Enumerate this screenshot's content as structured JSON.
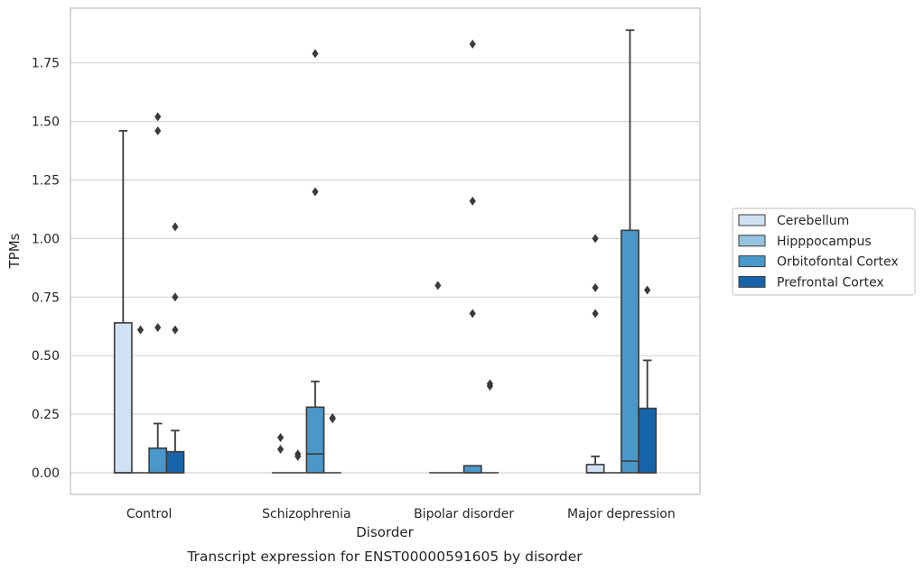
{
  "chart_data": {
    "type": "box",
    "xlabel": "Disorder",
    "ylabel": "TPMs",
    "caption": "Transcript expression for ENST00000591605 by disorder",
    "ylim": [
      -0.09,
      1.98
    ],
    "yticks": [
      "0.00",
      "0.25",
      "0.50",
      "0.75",
      "1.00",
      "1.25",
      "1.50",
      "1.75"
    ],
    "ytick_values": [
      0,
      0.25,
      0.5,
      0.75,
      1.0,
      1.25,
      1.5,
      1.75
    ],
    "grid": "horizontal",
    "legend_position": "right",
    "categories": [
      "Control",
      "Schizophrenia",
      "Bipolar disorder",
      "Major depression"
    ],
    "series": [
      {
        "name": "Cerebellum",
        "color": "#d0e1f2",
        "boxes": [
          {
            "q1": 0,
            "median": 0,
            "q3": 0.64,
            "whisker_low": 0,
            "whisker_high": 1.46,
            "outliers": []
          },
          {
            "q1": 0,
            "median": 0,
            "q3": 0,
            "whisker_low": 0,
            "whisker_high": 0,
            "outliers": [
              0.1,
              0.15
            ]
          },
          {
            "q1": 0,
            "median": 0,
            "q3": 0,
            "whisker_low": 0,
            "whisker_high": 0,
            "outliers": [
              0.8
            ]
          },
          {
            "q1": 0,
            "median": 0,
            "q3": 0.035,
            "whisker_low": 0,
            "whisker_high": 0.07,
            "outliers": [
              0.68,
              0.79,
              1.0
            ]
          }
        ]
      },
      {
        "name": "Hipppocampus",
        "color": "#94c4df",
        "boxes": [
          {
            "q1": 0,
            "median": 0,
            "q3": 0,
            "whisker_low": 0,
            "whisker_high": 0,
            "outliers": [
              0.61
            ]
          },
          {
            "q1": 0,
            "median": 0,
            "q3": 0,
            "whisker_low": 0,
            "whisker_high": 0,
            "outliers": [
              0.07,
              0.08
            ]
          },
          {
            "q1": 0,
            "median": 0,
            "q3": 0,
            "whisker_low": 0,
            "whisker_high": 0,
            "outliers": []
          },
          {
            "q1": 0,
            "median": 0,
            "q3": 0,
            "whisker_low": 0,
            "whisker_high": 0,
            "outliers": []
          }
        ]
      },
      {
        "name": "Orbitofontal Cortex",
        "color": "#4a98c9",
        "boxes": [
          {
            "q1": 0,
            "median": 0,
            "q3": 0.105,
            "whisker_low": 0,
            "whisker_high": 0.21,
            "outliers": [
              0.62,
              1.46,
              1.52
            ]
          },
          {
            "q1": 0,
            "median": 0.08,
            "q3": 0.28,
            "whisker_low": 0,
            "whisker_high": 0.39,
            "outliers": [
              1.2,
              1.79
            ]
          },
          {
            "q1": 0,
            "median": 0,
            "q3": 0.03,
            "whisker_low": 0,
            "whisker_high": 0.03,
            "outliers": [
              0.68,
              1.16,
              1.83
            ]
          },
          {
            "q1": 0,
            "median": 0.05,
            "q3": 1.035,
            "whisker_low": 0,
            "whisker_high": 1.89,
            "outliers": []
          }
        ]
      },
      {
        "name": "Prefrontal Cortex",
        "color": "#1764ab",
        "boxes": [
          {
            "q1": 0,
            "median": 0,
            "q3": 0.09,
            "whisker_low": 0,
            "whisker_high": 0.18,
            "outliers": [
              0.61,
              0.75,
              1.05
            ]
          },
          {
            "q1": 0,
            "median": 0,
            "q3": 0,
            "whisker_low": 0,
            "whisker_high": 0,
            "outliers": [
              0.23,
              0.235
            ]
          },
          {
            "q1": 0,
            "median": 0,
            "q3": 0,
            "whisker_low": 0,
            "whisker_high": 0,
            "outliers": [
              0.37,
              0.38
            ]
          },
          {
            "q1": 0,
            "median": 0,
            "q3": 0.275,
            "whisker_low": 0,
            "whisker_high": 0.48,
            "outliers": [
              0.78
            ]
          }
        ]
      }
    ]
  }
}
